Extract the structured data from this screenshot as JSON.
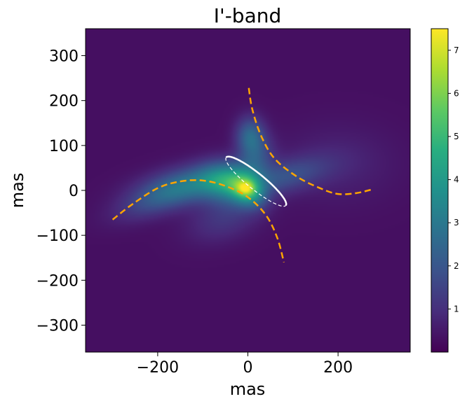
{
  "chart_data": {
    "type": "heatmap",
    "title": "I'-band",
    "xlabel": "mas",
    "ylabel": "mas",
    "xlim": [
      -360,
      360
    ],
    "ylim": [
      -360,
      360
    ],
    "x_ticks": [
      -200,
      0,
      200
    ],
    "x_tick_labels": [
      "−200",
      "0",
      "200"
    ],
    "y_ticks": [
      300,
      200,
      100,
      0,
      -100,
      -200,
      -300
    ],
    "y_tick_labels": [
      "300",
      "200",
      "100",
      "0",
      "−100",
      "−200",
      "−300"
    ],
    "grid": false,
    "colormap": "viridis",
    "colorbar": {
      "vmin": 0,
      "vmax": 7.5,
      "ticks": [
        1,
        2,
        3,
        4,
        5,
        6,
        7
      ],
      "tick_labels": [
        "1",
        "2",
        "3",
        "4",
        "5",
        "6",
        "7"
      ]
    },
    "background_value": 0.3,
    "emission_components": [
      {
        "x": 0,
        "y": 0,
        "sx": 28,
        "sy": 22,
        "angle": -40,
        "amp": 3.2
      },
      {
        "x": -5,
        "y": 5,
        "sx": 12,
        "sy": 10,
        "angle": 0,
        "amp": 1.6
      },
      {
        "x": -45,
        "y": 18,
        "sx": 40,
        "sy": 30,
        "angle": -10,
        "amp": 2.6
      },
      {
        "x": -120,
        "y": 15,
        "sx": 80,
        "sy": 28,
        "angle": 10,
        "amp": 2.2
      },
      {
        "x": -200,
        "y": -20,
        "sx": 70,
        "sy": 25,
        "angle": 20,
        "amp": 1.2
      },
      {
        "x": 80,
        "y": 30,
        "sx": 70,
        "sy": 25,
        "angle": 15,
        "amp": 1.4
      },
      {
        "x": 5,
        "y": 120,
        "sx": 22,
        "sy": 30,
        "angle": 0,
        "amp": 2.2
      },
      {
        "x": 20,
        "y": 70,
        "sx": 25,
        "sy": 35,
        "angle": -20,
        "amp": 1.2
      },
      {
        "x": -50,
        "y": -60,
        "sx": 60,
        "sy": 35,
        "angle": 20,
        "amp": 0.9
      },
      {
        "x": 200,
        "y": 60,
        "sx": 90,
        "sy": 60,
        "angle": 0,
        "amp": 0.45
      }
    ],
    "overlay_arcs": [
      {
        "name": "",
        "color": "#ffa500",
        "style": "dashed",
        "points": [
          [
            2,
            228
          ],
          [
            10,
            180
          ],
          [
            30,
            120
          ],
          [
            60,
            70
          ],
          [
            110,
            30
          ],
          [
            160,
            5
          ],
          [
            200,
            -8
          ],
          [
            240,
            -6
          ],
          [
            275,
            2
          ]
        ]
      },
      {
        "name": "",
        "color": "#ffa500",
        "style": "dashed",
        "points": [
          [
            -300,
            -65
          ],
          [
            -255,
            -30
          ],
          [
            -200,
            5
          ],
          [
            -150,
            20
          ],
          [
            -100,
            22
          ],
          [
            -50,
            10
          ],
          [
            0,
            -15
          ],
          [
            40,
            -55
          ],
          [
            65,
            -105
          ],
          [
            80,
            -160
          ]
        ]
      }
    ],
    "overlay_ellipse": {
      "color": "#ffffff",
      "cx": 18,
      "cy": 20,
      "semi_major": 85,
      "semi_minor": 18,
      "angle_deg": -39,
      "upper_half_style": "solid",
      "lower_half_style": "dashed"
    }
  }
}
